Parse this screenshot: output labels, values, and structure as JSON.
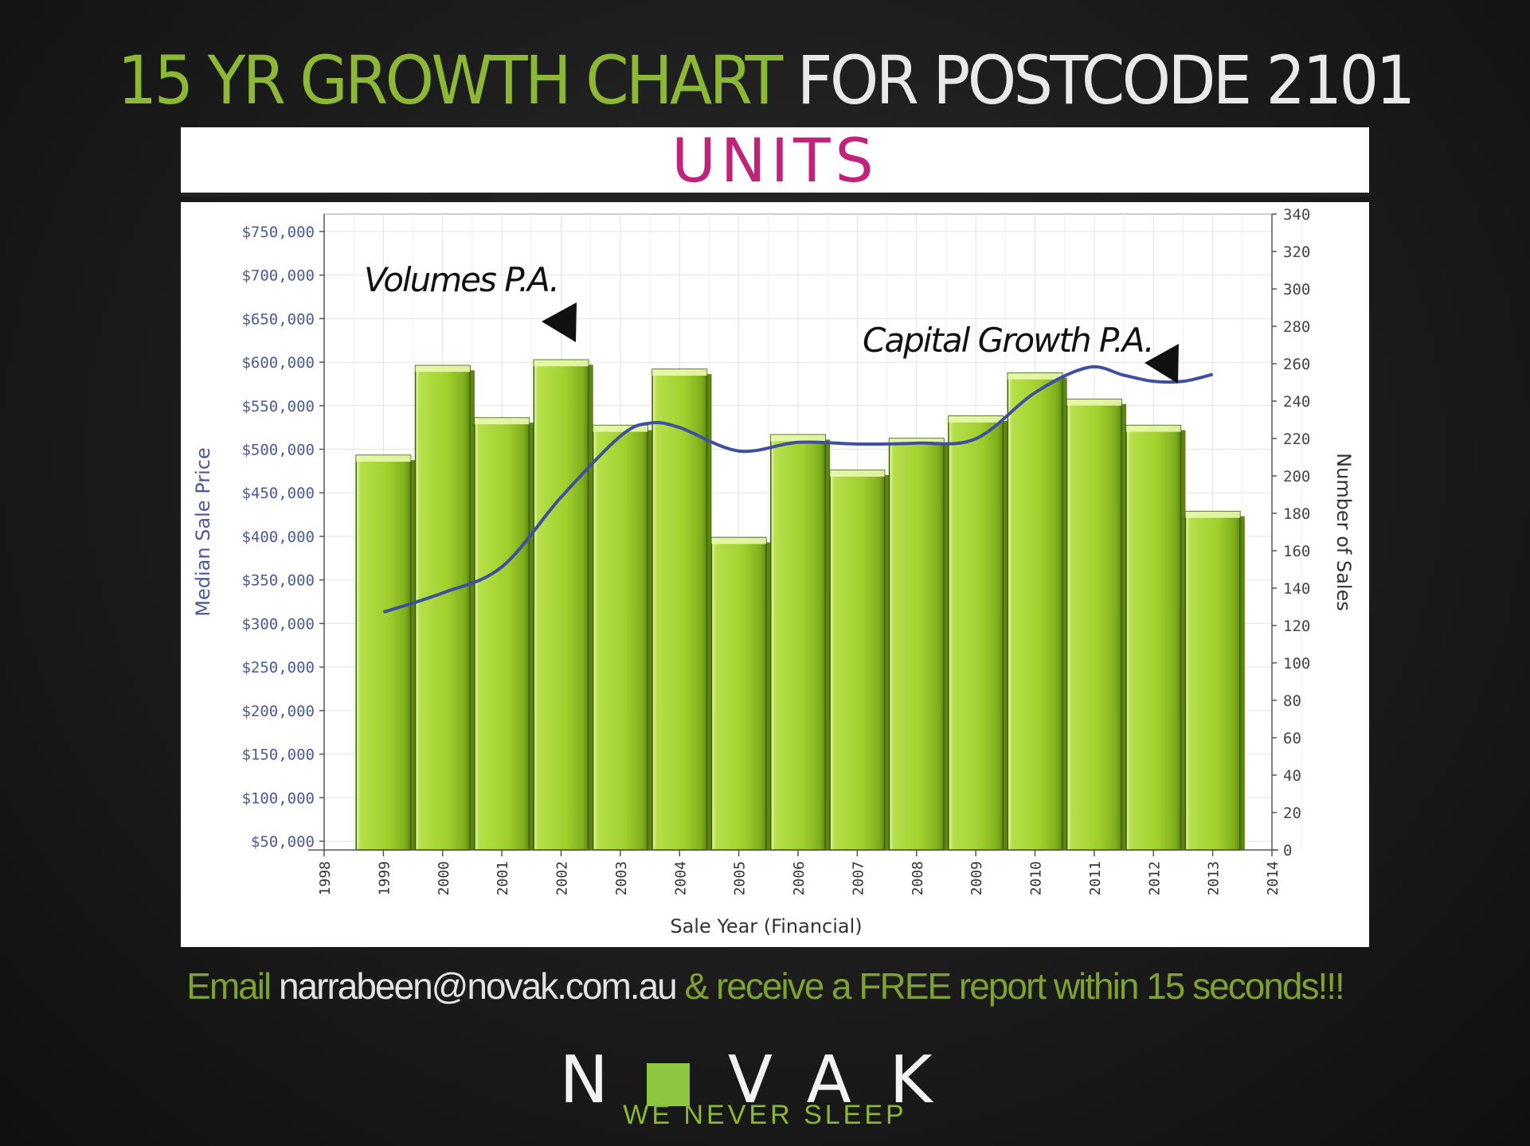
{
  "header": {
    "title_green": "15 YR GROWTH CHART",
    "title_white": "FOR POSTCODE 2101"
  },
  "banner": {
    "label": "UNITS"
  },
  "chart_data": {
    "type": "bar",
    "xlabel": "Sale Year (Financial)",
    "ylabel": "Median Sale Price",
    "y2label": "Number of Sales",
    "x_ticks": [
      "1998",
      "1999",
      "2000",
      "2001",
      "2002",
      "2003",
      "2004",
      "2005",
      "2006",
      "2007",
      "2008",
      "2009",
      "2010",
      "2011",
      "2012",
      "2013",
      "2014"
    ],
    "y_ticks": [
      "$750,000",
      "$700,000",
      "$650,000",
      "$600,000",
      "$550,000",
      "$500,000",
      "$450,000",
      "$400,000",
      "$350,000",
      "$300,000",
      "$250,000",
      "$200,000",
      "$150,000",
      "$100,000",
      "$50,000"
    ],
    "y2_ticks": [
      "340",
      "320",
      "300",
      "280",
      "260",
      "240",
      "220",
      "200",
      "180",
      "160",
      "140",
      "120",
      "100",
      "80",
      "60",
      "40",
      "20",
      "0"
    ],
    "ylim": [
      40000,
      770000
    ],
    "y2lim": [
      0,
      340
    ],
    "xlim": [
      1998,
      2014
    ],
    "series": [
      {
        "kind": "bar",
        "axis": "y2",
        "x": [
          1999,
          2000,
          2001,
          2002,
          2003,
          2004,
          2005,
          2006,
          2007,
          2008,
          2009,
          2010,
          2011,
          2012,
          2013
        ],
        "values": [
          211,
          259,
          231,
          262,
          227,
          257,
          167,
          222,
          203,
          220,
          232,
          255,
          241,
          227,
          181
        ]
      },
      {
        "kind": "line",
        "axis": "y",
        "x": [
          1999,
          2000,
          2001,
          2002,
          2003,
          2003.5,
          2004,
          2005,
          2006,
          2007,
          2008,
          2009,
          2010,
          2010.9,
          2011.5,
          2012,
          2012.5,
          2013
        ],
        "values": [
          313000,
          335000,
          365000,
          445000,
          515000,
          530000,
          525000,
          498000,
          508000,
          506000,
          507000,
          512000,
          565000,
          594000,
          585000,
          578000,
          578000,
          586000
        ]
      }
    ],
    "annotations": [
      "Volumes P.A.",
      "Capital Growth P.A."
    ],
    "colors": {
      "bar": "#a9d636",
      "bar_dark": "#6f9c16",
      "line": "#3f4fa0",
      "axis_text": "#4a5a96"
    },
    "grid": true
  },
  "footer": {
    "email_prefix": "Email",
    "email": "narrabeen@novak.com.au",
    "email_suffix": "& receive a FREE report within 15 seconds!!!"
  },
  "brand": {
    "logo_left": "N",
    "logo_right": "VAK",
    "tagline": "WE NEVER SLEEP"
  }
}
